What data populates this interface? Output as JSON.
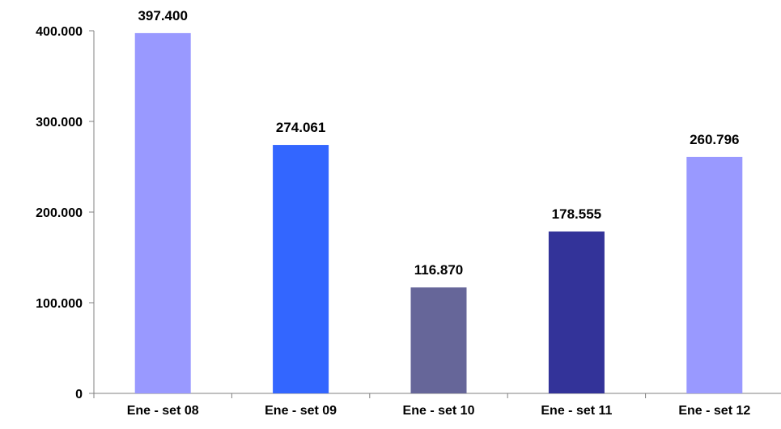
{
  "chart_data": {
    "type": "bar",
    "title": "",
    "xlabel": "",
    "ylabel": "",
    "categories": [
      "Ene - set 08",
      "Ene - set 09",
      "Ene - set 10",
      "Ene - set 11",
      "Ene - set 12"
    ],
    "values": [
      397400,
      274061,
      116870,
      178555,
      260796
    ],
    "value_labels": [
      "397.400",
      "274.061",
      "116.870",
      "178.555",
      "260.796"
    ],
    "bar_colors": [
      "#9999FF",
      "#3366FF",
      "#666699",
      "#333399",
      "#9999FF"
    ],
    "ylim": [
      0,
      400000
    ],
    "yticks": [
      0,
      100000,
      200000,
      300000,
      400000
    ],
    "ytick_labels": [
      "0",
      "100.000",
      "200.000",
      "300.000",
      "400.000"
    ],
    "grid": false,
    "legend": "none"
  }
}
